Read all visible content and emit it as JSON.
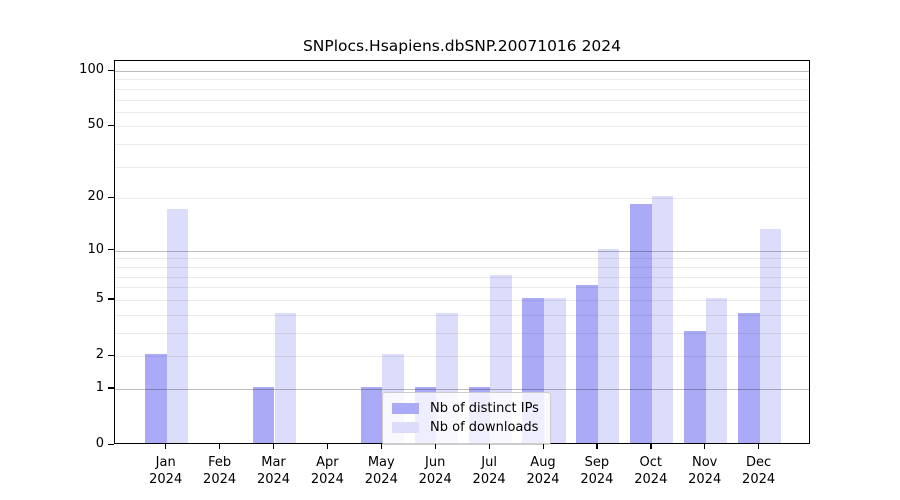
{
  "title": "SNPlocs.Hsapiens.dbSNP.20071016 2024",
  "chart_data": {
    "type": "bar",
    "title": "SNPlocs.Hsapiens.dbSNP.20071016 2024",
    "scale": "log10(1+x)",
    "categories": [
      "Jan",
      "Feb",
      "Mar",
      "Apr",
      "May",
      "Jun",
      "Jul",
      "Aug",
      "Sep",
      "Oct",
      "Nov",
      "Dec"
    ],
    "x_tick_second_line": "2024",
    "series": [
      {
        "name": "Nb of distinct IPs",
        "color": "#aaaaf7",
        "values": [
          2,
          0,
          1,
          0,
          1,
          1,
          1,
          5,
          6,
          18,
          3,
          4
        ]
      },
      {
        "name": "Nb of downloads",
        "color": "#dcdcfb",
        "values": [
          17,
          0,
          4,
          0,
          2,
          4,
          7,
          5,
          10,
          20,
          5,
          13
        ]
      }
    ],
    "yticks": [
      0,
      1,
      2,
      5,
      10,
      20,
      50,
      100
    ],
    "major_gridlines": [
      1,
      10,
      100
    ],
    "minor_gridlines": [
      2,
      3,
      4,
      5,
      6,
      7,
      8,
      9,
      20,
      30,
      40,
      50,
      60,
      70,
      80,
      90
    ],
    "ylim": [
      0,
      100
    ],
    "grid": "horizontal, drawn over bars",
    "legend_position": "lower center, inside plot"
  }
}
